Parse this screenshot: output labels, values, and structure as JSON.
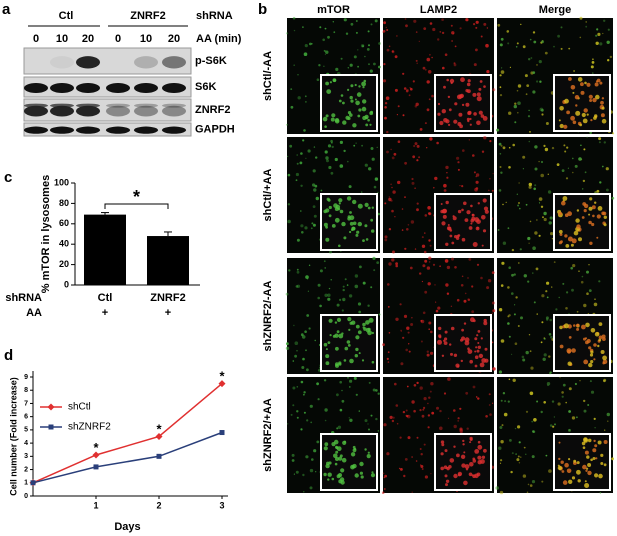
{
  "panel_labels": [
    "a",
    "b",
    "c",
    "d"
  ],
  "blot": {
    "groups": [
      "Ctl",
      "ZNRF2"
    ],
    "group_label": "shRNA",
    "times": [
      0,
      10,
      20,
      0,
      10,
      20
    ],
    "time_label": "AA (min)",
    "bands": [
      "p-S6K",
      "S6K",
      "ZNRF2",
      "GAPDH"
    ]
  },
  "microscopy": {
    "columns": [
      "mTOR",
      "LAMP2",
      "Merge"
    ],
    "rows": [
      "shCtl/-AA",
      "shCtl/+AA",
      "shZNRF2/-AA",
      "shZNRF2/+AA"
    ]
  },
  "chart_data": [
    {
      "type": "bar",
      "ylabel": "% mTOR in lysosomes",
      "categories": [
        "Ctl",
        "ZNRF2"
      ],
      "values": [
        69,
        48
      ],
      "errors": [
        2,
        4
      ],
      "color": "#000000",
      "ylim": [
        0,
        100
      ],
      "yticks": [
        0,
        20,
        40,
        60,
        80,
        100
      ],
      "row_labels": [
        "shRNA",
        "AA"
      ],
      "aa": [
        "+",
        "+"
      ],
      "significance": "*"
    },
    {
      "type": "line",
      "xlabel": "Days",
      "ylabel": "Cell number (Fold increase)",
      "x": [
        0,
        1,
        2,
        3
      ],
      "xlim": [
        0,
        3
      ],
      "xticks": [
        1,
        2,
        3
      ],
      "ylim": [
        0,
        9
      ],
      "yticks": [
        0,
        1,
        2,
        3,
        4,
        5,
        6,
        7,
        8,
        9
      ],
      "series": [
        {
          "name": "shCtl",
          "color": "#e03030",
          "marker": "diamond",
          "values": [
            1,
            3.1,
            4.5,
            8.5
          ]
        },
        {
          "name": "shZNRF2",
          "color": "#2a3f7a",
          "marker": "square",
          "values": [
            1,
            2.2,
            3,
            4.8
          ]
        }
      ],
      "annotations": [
        {
          "x": 1,
          "y": 3.6,
          "text": "*"
        },
        {
          "x": 2,
          "y": 5.0,
          "text": "*"
        },
        {
          "x": 3,
          "y": 9.0,
          "text": "*"
        }
      ]
    }
  ]
}
